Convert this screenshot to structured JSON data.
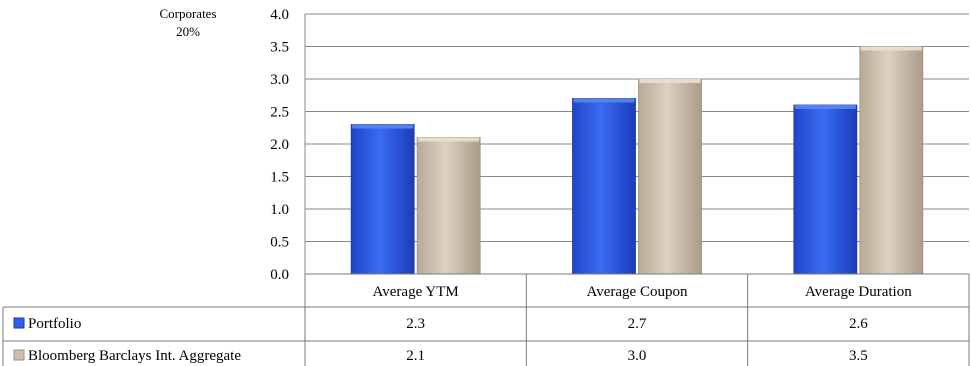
{
  "chart_data": {
    "type": "bar",
    "categories": [
      "Average YTM",
      "Average Coupon",
      "Average Duration"
    ],
    "series": [
      {
        "name": "Portfolio",
        "values": [
          2.3,
          2.7,
          2.6
        ],
        "color": "#2f5fe6"
      },
      {
        "name": "Bloomberg Barclays Int. Aggregate",
        "values": [
          2.1,
          3.0,
          3.5
        ],
        "color": "#cdbfad"
      }
    ],
    "y_ticks": [
      "0.0",
      "0.5",
      "1.0",
      "1.5",
      "2.0",
      "2.5",
      "3.0",
      "3.5",
      "4.0"
    ],
    "ylim": [
      0,
      4.0
    ],
    "grid": true,
    "legend": "data-table",
    "data_table": [
      [
        "2.3",
        "2.7",
        "2.6"
      ],
      [
        "2.1",
        "3.0",
        "3.5"
      ]
    ]
  },
  "overlay_fragment": {
    "line1": "Corporates",
    "line2": "20%"
  }
}
